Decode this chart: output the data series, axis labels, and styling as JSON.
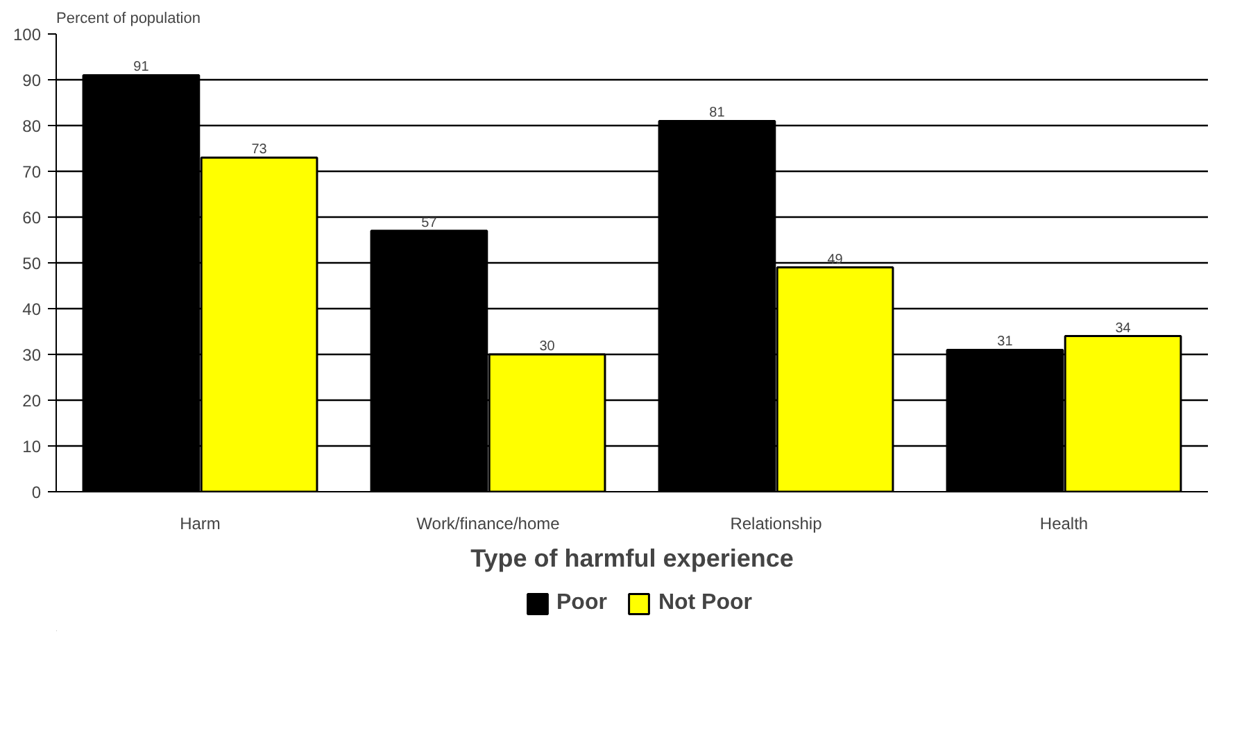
{
  "chart_data": {
    "type": "bar",
    "ylabel": "Percent of population",
    "xlabel": "Type of harmful experience",
    "categories": [
      "Harm",
      "Work/finance/home",
      "Relationship",
      "Health"
    ],
    "series": [
      {
        "name": "Poor",
        "color": "#000000",
        "values": [
          91,
          57,
          81,
          31
        ]
      },
      {
        "name": "Not Poor",
        "color": "#ffff00",
        "values": [
          73,
          30,
          49,
          34
        ]
      }
    ],
    "ylim": [
      0,
      100
    ],
    "yticks": [
      0,
      10,
      20,
      30,
      40,
      50,
      60,
      70,
      80,
      90,
      100
    ],
    "grid": "y",
    "legend": "bottom",
    "data_labels": true
  }
}
